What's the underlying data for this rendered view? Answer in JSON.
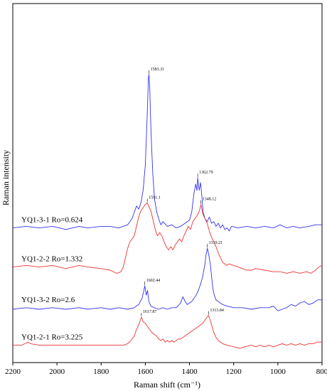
{
  "chart_data": {
    "type": "line",
    "xlabel": "Raman shift (cm⁻¹)",
    "ylabel": "Raman intensity",
    "xlim": [
      2200,
      800
    ],
    "x_reversed": true,
    "x_ticks": [
      2200,
      2000,
      1800,
      1600,
      1400,
      1200,
      1000,
      800
    ],
    "y_ticks": [],
    "grid": false,
    "legend": "none",
    "series": [
      {
        "name": "YQ1-3-1 Ro=0.624",
        "color": "#3333ee",
        "offset": 0.75,
        "peaks": [
          {
            "label": "1583.31",
            "x": 1583.31
          },
          {
            "label": "1362.79",
            "x": 1362.79
          }
        ],
        "points": [
          [
            2200,
            0.02
          ],
          [
            2140,
            0.03
          ],
          [
            2080,
            0.02
          ],
          [
            2020,
            0.03
          ],
          [
            1960,
            0.01
          ],
          [
            1900,
            0.03
          ],
          [
            1860,
            0.02
          ],
          [
            1800,
            0.03
          ],
          [
            1760,
            0.03
          ],
          [
            1720,
            0.02
          ],
          [
            1680,
            0.04
          ],
          [
            1660,
            0.08
          ],
          [
            1650,
            0.12
          ],
          [
            1640,
            0.16
          ],
          [
            1630,
            0.14
          ],
          [
            1620,
            0.18
          ],
          [
            1610,
            0.26
          ],
          [
            1600,
            0.42
          ],
          [
            1592,
            0.72
          ],
          [
            1586,
            0.98
          ],
          [
            1583.31,
            1.0
          ],
          [
            1580,
            0.92
          ],
          [
            1574,
            0.62
          ],
          [
            1566,
            0.36
          ],
          [
            1558,
            0.2
          ],
          [
            1548,
            0.12
          ],
          [
            1540,
            0.08
          ],
          [
            1530,
            0.04
          ],
          [
            1520,
            0.06
          ],
          [
            1500,
            0.03
          ],
          [
            1480,
            0.04
          ],
          [
            1460,
            0.02
          ],
          [
            1440,
            0.03
          ],
          [
            1420,
            0.05
          ],
          [
            1400,
            0.07
          ],
          [
            1390,
            0.12
          ],
          [
            1380,
            0.24
          ],
          [
            1372,
            0.3
          ],
          [
            1366,
            0.26
          ],
          [
            1362.79,
            0.34
          ],
          [
            1356,
            0.26
          ],
          [
            1350,
            0.31
          ],
          [
            1344,
            0.22
          ],
          [
            1338,
            0.12
          ],
          [
            1330,
            0.08
          ],
          [
            1320,
            0.06
          ],
          [
            1310,
            0.09
          ],
          [
            1300,
            0.05
          ],
          [
            1290,
            0.06
          ],
          [
            1280,
            0.03
          ],
          [
            1270,
            0.05
          ],
          [
            1260,
            0.02
          ],
          [
            1250,
            0.04
          ],
          [
            1240,
            0.01
          ],
          [
            1230,
            0.02
          ],
          [
            1220,
            0.0
          ],
          [
            1210,
            0.03
          ],
          [
            1180,
            0.02
          ],
          [
            1140,
            0.03
          ],
          [
            1100,
            0.02
          ],
          [
            1060,
            0.03
          ],
          [
            1020,
            0.02
          ],
          [
            990,
            0.04
          ],
          [
            960,
            0.02
          ],
          [
            930,
            0.03
          ],
          [
            900,
            0.02
          ],
          [
            860,
            0.03
          ],
          [
            830,
            0.04
          ],
          [
            800,
            0.04
          ]
        ]
      },
      {
        "name": "YQ1-2-2 Ro=1.332",
        "color": "#ee3333",
        "offset": 0.48,
        "peaks": [
          {
            "label": "1591.1",
            "x": 1591.1
          },
          {
            "label": "1348.12",
            "x": 1348.12
          }
        ],
        "points": [
          [
            2200,
            0.04
          ],
          [
            2140,
            0.05
          ],
          [
            2080,
            0.04
          ],
          [
            2020,
            0.05
          ],
          [
            1960,
            0.03
          ],
          [
            1900,
            0.05
          ],
          [
            1860,
            0.04
          ],
          [
            1800,
            0.03
          ],
          [
            1760,
            0.02
          ],
          [
            1730,
            0.0
          ],
          [
            1710,
            0.01
          ],
          [
            1700,
            0.04
          ],
          [
            1690,
            0.1
          ],
          [
            1680,
            0.16
          ],
          [
            1670,
            0.2
          ],
          [
            1660,
            0.22
          ],
          [
            1650,
            0.24
          ],
          [
            1640,
            0.3
          ],
          [
            1630,
            0.36
          ],
          [
            1620,
            0.4
          ],
          [
            1610,
            0.42
          ],
          [
            1600,
            0.44
          ],
          [
            1591.1,
            0.45
          ],
          [
            1582,
            0.42
          ],
          [
            1575,
            0.4
          ],
          [
            1565,
            0.34
          ],
          [
            1555,
            0.28
          ],
          [
            1545,
            0.24
          ],
          [
            1535,
            0.26
          ],
          [
            1525,
            0.24
          ],
          [
            1515,
            0.2
          ],
          [
            1505,
            0.17
          ],
          [
            1495,
            0.15
          ],
          [
            1485,
            0.17
          ],
          [
            1475,
            0.15
          ],
          [
            1465,
            0.18
          ],
          [
            1455,
            0.2
          ],
          [
            1445,
            0.22
          ],
          [
            1435,
            0.2
          ],
          [
            1425,
            0.24
          ],
          [
            1415,
            0.27
          ],
          [
            1405,
            0.3
          ],
          [
            1395,
            0.28
          ],
          [
            1385,
            0.33
          ],
          [
            1375,
            0.35
          ],
          [
            1365,
            0.37
          ],
          [
            1355,
            0.4
          ],
          [
            1348.12,
            0.44
          ],
          [
            1340,
            0.38
          ],
          [
            1330,
            0.35
          ],
          [
            1320,
            0.32
          ],
          [
            1310,
            0.27
          ],
          [
            1300,
            0.23
          ],
          [
            1290,
            0.2
          ],
          [
            1280,
            0.17
          ],
          [
            1270,
            0.13
          ],
          [
            1260,
            0.1
          ],
          [
            1250,
            0.07
          ],
          [
            1240,
            0.06
          ],
          [
            1230,
            0.05
          ],
          [
            1220,
            0.06
          ],
          [
            1200,
            0.05
          ],
          [
            1180,
            0.04
          ],
          [
            1160,
            0.03
          ],
          [
            1140,
            0.02
          ],
          [
            1120,
            0.02
          ],
          [
            1100,
            0.03
          ],
          [
            1060,
            0.02
          ],
          [
            1020,
            0.01
          ],
          [
            990,
            0.01
          ],
          [
            960,
            0.0
          ],
          [
            930,
            0.01
          ],
          [
            900,
            0.0
          ],
          [
            870,
            0.01
          ],
          [
            850,
            0.0
          ],
          [
            830,
            0.02
          ],
          [
            815,
            0.04
          ],
          [
            800,
            0.05
          ]
        ]
      },
      {
        "name": "YQ1-3-2 Ro=2.6",
        "color": "#3333ee",
        "offset": 0.24,
        "peaks": [
          {
            "label": "1602.44",
            "x": 1602.44
          },
          {
            "label": "1319.21",
            "x": 1319.21
          }
        ],
        "points": [
          [
            2200,
            0.01
          ],
          [
            2140,
            0.02
          ],
          [
            2080,
            0.01
          ],
          [
            2020,
            0.02
          ],
          [
            1960,
            0.01
          ],
          [
            1900,
            0.02
          ],
          [
            1860,
            0.01
          ],
          [
            1800,
            0.02
          ],
          [
            1760,
            0.01
          ],
          [
            1720,
            0.02
          ],
          [
            1680,
            0.01
          ],
          [
            1650,
            0.02
          ],
          [
            1630,
            0.04
          ],
          [
            1615,
            0.08
          ],
          [
            1608,
            0.12
          ],
          [
            1602.44,
            0.16
          ],
          [
            1596,
            0.1
          ],
          [
            1590,
            0.13
          ],
          [
            1584,
            0.06
          ],
          [
            1575,
            0.03
          ],
          [
            1560,
            0.02
          ],
          [
            1540,
            0.01
          ],
          [
            1520,
            0.02
          ],
          [
            1500,
            0.01
          ],
          [
            1480,
            0.02
          ],
          [
            1460,
            0.02
          ],
          [
            1440,
            0.05
          ],
          [
            1430,
            0.09
          ],
          [
            1420,
            0.06
          ],
          [
            1410,
            0.04
          ],
          [
            1400,
            0.05
          ],
          [
            1390,
            0.06
          ],
          [
            1380,
            0.08
          ],
          [
            1370,
            0.1
          ],
          [
            1360,
            0.13
          ],
          [
            1350,
            0.17
          ],
          [
            1340,
            0.22
          ],
          [
            1330,
            0.3
          ],
          [
            1325,
            0.36
          ],
          [
            1319.21,
            0.4
          ],
          [
            1313,
            0.36
          ],
          [
            1306,
            0.3
          ],
          [
            1300,
            0.22
          ],
          [
            1294,
            0.14
          ],
          [
            1288,
            0.1
          ],
          [
            1280,
            0.07
          ],
          [
            1270,
            0.06
          ],
          [
            1260,
            0.05
          ],
          [
            1250,
            0.04
          ],
          [
            1230,
            0.03
          ],
          [
            1200,
            0.02
          ],
          [
            1160,
            0.02
          ],
          [
            1120,
            0.01
          ],
          [
            1080,
            0.02
          ],
          [
            1040,
            0.02
          ],
          [
            1020,
            0.03
          ],
          [
            1000,
            0.0
          ],
          [
            980,
            0.01
          ],
          [
            960,
            0.02
          ],
          [
            940,
            0.04
          ],
          [
            920,
            0.03
          ],
          [
            900,
            0.05
          ],
          [
            880,
            0.06
          ],
          [
            860,
            0.04
          ],
          [
            840,
            0.05
          ],
          [
            820,
            0.07
          ],
          [
            800,
            0.07
          ]
        ]
      },
      {
        "name": "YQ1-2-1 Ro=3.225",
        "color": "#ee3333",
        "offset": 0.0,
        "peaks": [
          {
            "label": "1617.87",
            "x": 1617.87
          },
          {
            "label": "1313.84",
            "x": 1313.84
          }
        ],
        "points": [
          [
            2200,
            0.02
          ],
          [
            2160,
            0.02
          ],
          [
            2130,
            0.04
          ],
          [
            2120,
            0.03
          ],
          [
            2080,
            0.02
          ],
          [
            2040,
            0.02
          ],
          [
            2000,
            0.02
          ],
          [
            1960,
            0.02
          ],
          [
            1920,
            0.02
          ],
          [
            1880,
            0.02
          ],
          [
            1840,
            0.02
          ],
          [
            1800,
            0.02
          ],
          [
            1760,
            0.02
          ],
          [
            1730,
            0.02
          ],
          [
            1700,
            0.02
          ],
          [
            1680,
            0.03
          ],
          [
            1665,
            0.05
          ],
          [
            1650,
            0.08
          ],
          [
            1640,
            0.12
          ],
          [
            1630,
            0.15
          ],
          [
            1617.87,
            0.2
          ],
          [
            1610,
            0.17
          ],
          [
            1600,
            0.16
          ],
          [
            1590,
            0.14
          ],
          [
            1580,
            0.12
          ],
          [
            1570,
            0.1
          ],
          [
            1560,
            0.09
          ],
          [
            1550,
            0.08
          ],
          [
            1540,
            0.06
          ],
          [
            1530,
            0.05
          ],
          [
            1520,
            0.06
          ],
          [
            1510,
            0.04
          ],
          [
            1500,
            0.05
          ],
          [
            1490,
            0.04
          ],
          [
            1480,
            0.05
          ],
          [
            1470,
            0.04
          ],
          [
            1460,
            0.05
          ],
          [
            1450,
            0.06
          ],
          [
            1440,
            0.06
          ],
          [
            1430,
            0.07
          ],
          [
            1420,
            0.08
          ],
          [
            1410,
            0.09
          ],
          [
            1400,
            0.1
          ],
          [
            1390,
            0.11
          ],
          [
            1380,
            0.12
          ],
          [
            1370,
            0.13
          ],
          [
            1360,
            0.14
          ],
          [
            1350,
            0.15
          ],
          [
            1340,
            0.16
          ],
          [
            1330,
            0.18
          ],
          [
            1320,
            0.2
          ],
          [
            1313.84,
            0.21
          ],
          [
            1306,
            0.18
          ],
          [
            1298,
            0.14
          ],
          [
            1290,
            0.1
          ],
          [
            1280,
            0.07
          ],
          [
            1270,
            0.05
          ],
          [
            1260,
            0.04
          ],
          [
            1250,
            0.03
          ],
          [
            1230,
            0.02
          ],
          [
            1200,
            0.01
          ],
          [
            1170,
            0.0
          ],
          [
            1150,
            0.01
          ],
          [
            1120,
            0.02
          ],
          [
            1100,
            0.01
          ],
          [
            1080,
            0.02
          ],
          [
            1060,
            0.01
          ],
          [
            1040,
            0.02
          ],
          [
            1020,
            0.01
          ],
          [
            1000,
            0.02
          ],
          [
            980,
            0.03
          ],
          [
            960,
            0.02
          ],
          [
            940,
            0.03
          ],
          [
            920,
            0.02
          ],
          [
            900,
            0.03
          ],
          [
            880,
            0.02
          ],
          [
            860,
            0.03
          ],
          [
            840,
            0.03
          ],
          [
            820,
            0.04
          ],
          [
            800,
            0.04
          ]
        ]
      }
    ]
  }
}
